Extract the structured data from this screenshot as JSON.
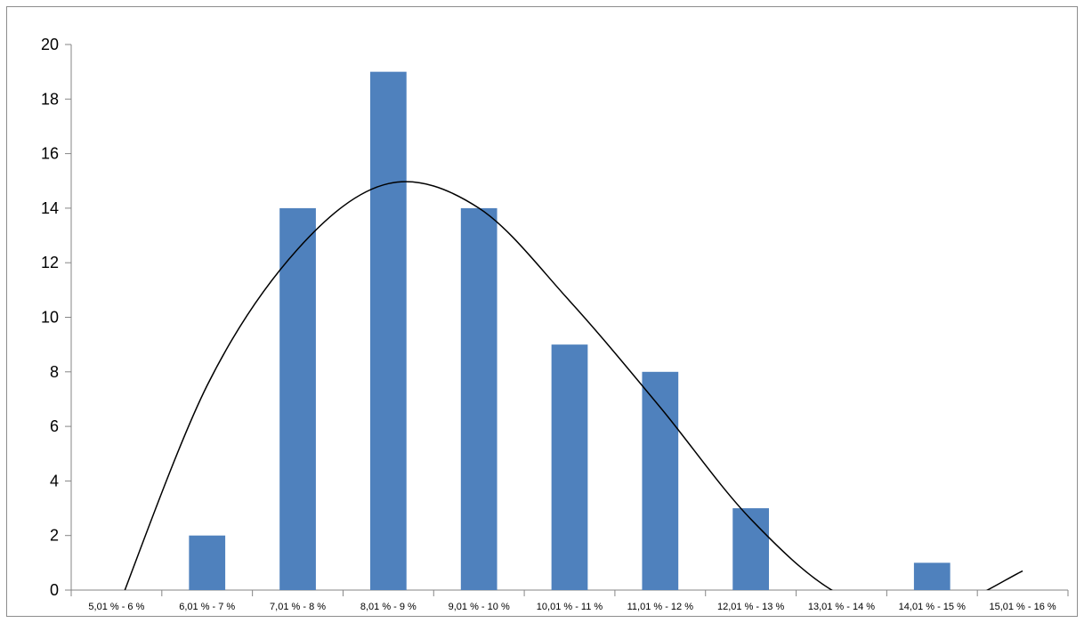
{
  "chart_data": {
    "type": "bar",
    "title": "",
    "xlabel": "",
    "ylabel": "",
    "ylim": [
      0,
      20
    ],
    "yticks": [
      0,
      2,
      4,
      6,
      8,
      10,
      12,
      14,
      16,
      18,
      20
    ],
    "grid": false,
    "legend": "none",
    "categories": [
      "5,01 % - 6 %",
      "6,01 % - 7 %",
      "7,01 % - 8 %",
      "8,01 % - 9 %",
      "9,01 % - 10 %",
      "10,01 % - 11 %",
      "11,01 % - 12 %",
      "12,01 % - 13 %",
      "13,01 % - 14 %",
      "14,01 % - 15 %",
      "15,01 % - 16 %"
    ],
    "values": [
      0,
      2,
      14,
      19,
      14,
      9,
      8,
      3,
      0,
      1,
      0
    ],
    "curve": {
      "type": "line",
      "description_values_at_categories": [
        -0.8,
        7.5,
        12.5,
        14.9,
        14.0,
        10.6,
        6.7,
        2.6,
        -0.2,
        -0.8,
        0.7
      ],
      "color": "#000000"
    },
    "bar_color": "#4F81BD"
  }
}
